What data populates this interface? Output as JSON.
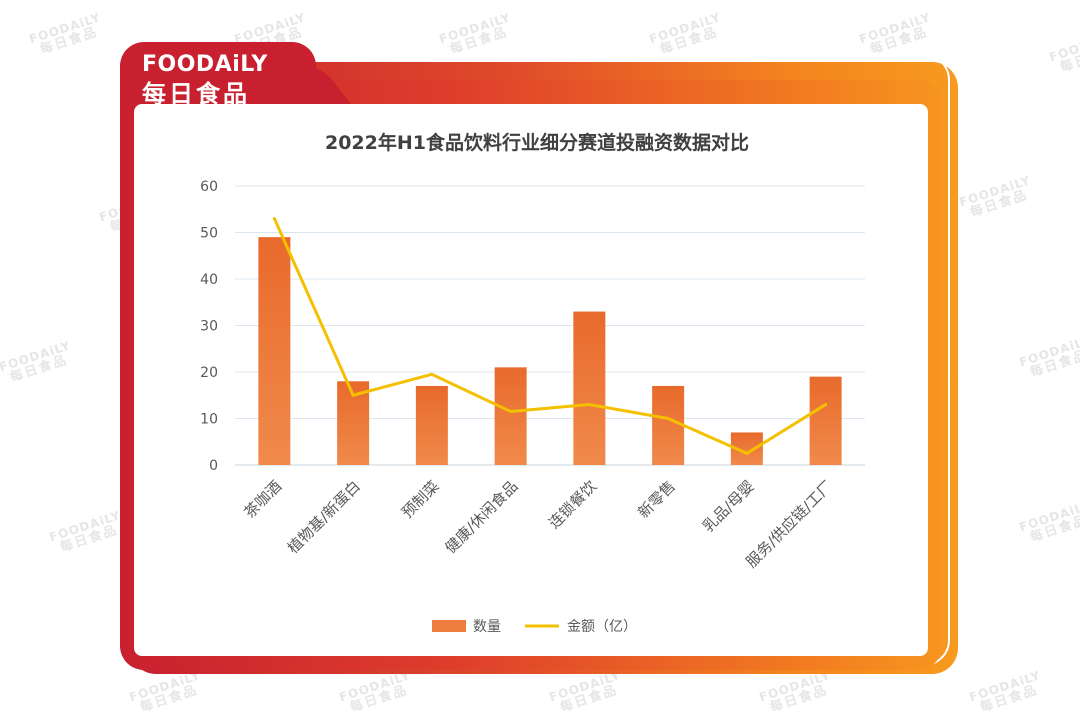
{
  "brand": {
    "name_en": "FOODAiLY",
    "name_cn": "每日食品"
  },
  "watermark": {
    "en": "FOODAiLY",
    "cn": "每日食品"
  },
  "colors": {
    "bar": "#f08a4b",
    "bar_top": "#e86a2c",
    "line": "#f5c000",
    "grid": "#dce7f2",
    "text": "#595959",
    "title": "#404040"
  },
  "chart_data": {
    "type": "bar",
    "title": "2022年H1食品饮料行业细分赛道投融资数据对比",
    "categories": [
      "茶咖酒",
      "植物基/新蛋白",
      "预制菜",
      "健康/休闲食品",
      "连锁餐饮",
      "新零售",
      "乳品/母婴",
      "服务/供应链/工厂"
    ],
    "series": [
      {
        "name": "数量",
        "kind": "bar",
        "values": [
          49,
          18,
          17,
          21,
          33,
          17,
          7,
          19
        ]
      },
      {
        "name": "金额（亿）",
        "kind": "line",
        "values": [
          53,
          15,
          19.5,
          11.5,
          13,
          10,
          2.5,
          13
        ]
      }
    ],
    "ylim": [
      0,
      60
    ],
    "yticks": [
      0,
      10,
      20,
      30,
      40,
      50,
      60
    ],
    "grid": true,
    "legend": "bottom"
  }
}
